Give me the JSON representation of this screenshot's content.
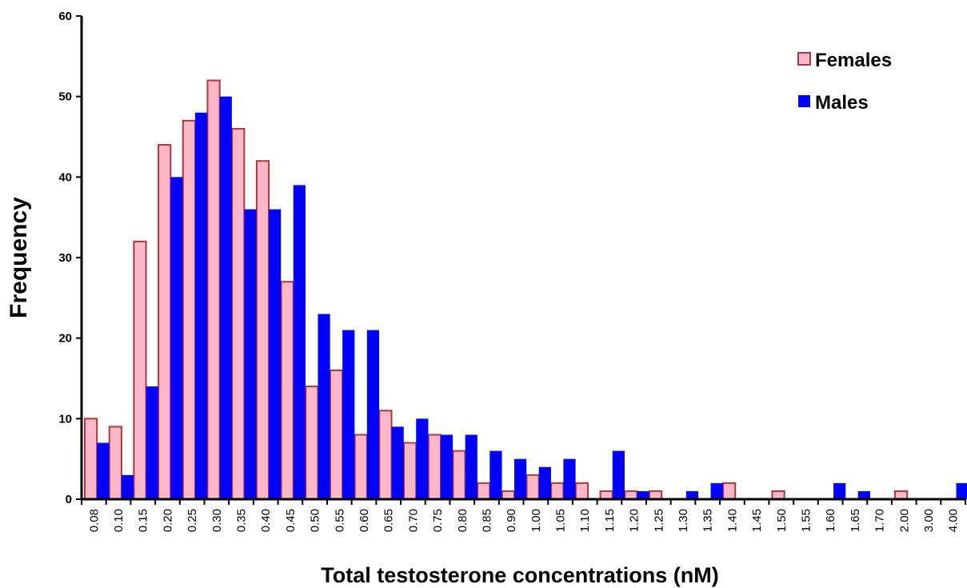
{
  "chart_data": {
    "type": "bar",
    "title": "",
    "xlabel": "Total testosterone concentrations (nM)",
    "ylabel": "Frequency",
    "ylim": [
      0,
      60
    ],
    "yticks": [
      0,
      10,
      20,
      30,
      40,
      50,
      60
    ],
    "grid": false,
    "legend_position": "top-right",
    "categories": [
      "0.08",
      "0.10",
      "0.15",
      "0.20",
      "0.25",
      "0.30",
      "0.35",
      "0.40",
      "0.45",
      "0.50",
      "0.55",
      "0.60",
      "0.65",
      "0.70",
      "0.75",
      "0.80",
      "0.85",
      "0.90",
      "1.00",
      "1.05",
      "1.10",
      "1.15",
      "1.20",
      "1.25",
      "1.30",
      "1.35",
      "1.40",
      "1.45",
      "1.50",
      "1.55",
      "1.60",
      "1.65",
      "1.70",
      "2.00",
      "3.00",
      "4.00"
    ],
    "series": [
      {
        "name": "Females",
        "fill": "#ffb6c8",
        "stroke": "#a83a3a",
        "values": [
          10,
          9,
          32,
          44,
          47,
          52,
          46,
          42,
          27,
          14,
          16,
          8,
          11,
          7,
          8,
          6,
          2,
          1,
          3,
          2,
          2,
          1,
          1,
          1,
          0,
          0,
          2,
          0,
          1,
          0,
          0,
          0,
          0,
          1,
          0,
          0
        ]
      },
      {
        "name": "Males",
        "fill": "#0000ff",
        "stroke": "#0000ff",
        "values": [
          7,
          3,
          14,
          40,
          48,
          50,
          36,
          36,
          39,
          23,
          21,
          21,
          9,
          10,
          8,
          8,
          6,
          5,
          4,
          5,
          0,
          6,
          1,
          0,
          1,
          2,
          0,
          0,
          0,
          0,
          2,
          1,
          0,
          0,
          0,
          2
        ]
      }
    ]
  }
}
